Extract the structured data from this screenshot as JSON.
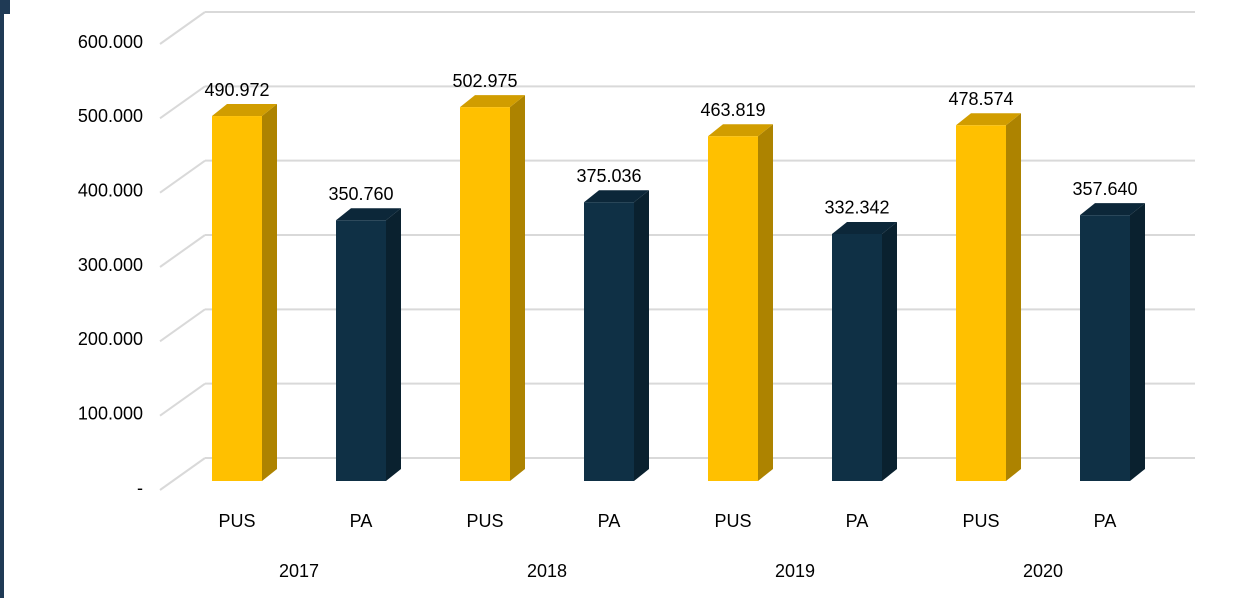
{
  "chart_data": {
    "type": "bar3d",
    "categories": [
      "PUS",
      "PA",
      "PUS",
      "PA",
      "PUS",
      "PA",
      "PUS",
      "PA"
    ],
    "groups": [
      "2017",
      "2018",
      "2019",
      "2020"
    ],
    "values": [
      490972,
      350760,
      502975,
      375036,
      463819,
      332342,
      478574,
      357640
    ],
    "value_labels": [
      "490.972",
      "350.760",
      "502.975",
      "375.036",
      "463.819",
      "332.342",
      "478.574",
      "357.640"
    ],
    "colors": [
      "#FFC000",
      "#0F3045",
      "#FFC000",
      "#0F3045",
      "#FFC000",
      "#0F3045",
      "#FFC000",
      "#0F3045"
    ],
    "ylim": [
      0,
      600000
    ],
    "yticks": [
      {
        "value": 0,
        "label": "-"
      },
      {
        "value": 100000,
        "label": "100.000"
      },
      {
        "value": 200000,
        "label": "200.000"
      },
      {
        "value": 300000,
        "label": "300.000"
      },
      {
        "value": 400000,
        "label": "400.000"
      },
      {
        "value": 500000,
        "label": "500.000"
      },
      {
        "value": 600000,
        "label": "600.000"
      }
    ],
    "grid": true
  }
}
